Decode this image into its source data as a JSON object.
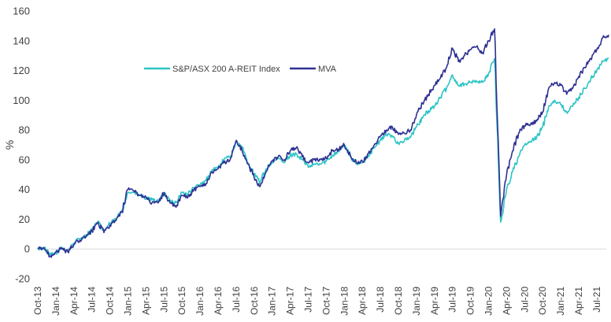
{
  "chart_data": {
    "type": "line",
    "title": "",
    "xlabel": "",
    "ylabel": "%",
    "ylim": [
      -20,
      160
    ],
    "y_ticks": [
      "-20",
      "0",
      "20",
      "40",
      "60",
      "80",
      "100",
      "120",
      "140",
      "160"
    ],
    "x_tick_labels": [
      "Oct-13",
      "Jan-14",
      "Apr-14",
      "Jul-14",
      "Oct-14",
      "Jan-15",
      "Apr-15",
      "Jul-15",
      "Oct-15",
      "Jan-16",
      "Apr-16",
      "Jul-16",
      "Oct-16",
      "Jan-17",
      "Apr-17",
      "Jul-17",
      "Oct-17",
      "Jan-18",
      "Apr-18",
      "Jul-18",
      "Oct-18",
      "Jan-19",
      "Apr-19",
      "Jul-19",
      "Oct-19",
      "Jan-20",
      "Apr-20",
      "Jul-20",
      "Oct-20",
      "Jan-21",
      "Apr-21",
      "Jul-21"
    ],
    "grid": "horizontal-zero-line-only",
    "legend_position": "top-left",
    "series": [
      {
        "name": "S&P/ASX 200 A-REIT Index",
        "color": "#2ec4c6",
        "points": [
          [
            "Oct-13",
            0
          ],
          [
            "Nov-13",
            1
          ],
          [
            "Dec-13",
            -4
          ],
          [
            "Jan-14",
            -3
          ],
          [
            "Feb-14",
            1
          ],
          [
            "Mar-14",
            -1
          ],
          [
            "Apr-14",
            4
          ],
          [
            "May-14",
            7
          ],
          [
            "Jun-14",
            9
          ],
          [
            "Jul-14",
            13
          ],
          [
            "Aug-14",
            18
          ],
          [
            "Sep-14",
            12
          ],
          [
            "Oct-14",
            17
          ],
          [
            "Nov-14",
            20
          ],
          [
            "Dec-14",
            26
          ],
          [
            "Jan-15",
            38
          ],
          [
            "Feb-15",
            38
          ],
          [
            "Mar-15",
            36
          ],
          [
            "Apr-15",
            34
          ],
          [
            "May-15",
            33
          ],
          [
            "Jun-15",
            32
          ],
          [
            "Jul-15",
            37
          ],
          [
            "Aug-15",
            33
          ],
          [
            "Sep-15",
            31
          ],
          [
            "Oct-15",
            38
          ],
          [
            "Nov-15",
            37
          ],
          [
            "Dec-15",
            41
          ],
          [
            "Jan-16",
            43
          ],
          [
            "Feb-16",
            46
          ],
          [
            "Mar-16",
            53
          ],
          [
            "Apr-16",
            55
          ],
          [
            "May-16",
            60
          ],
          [
            "Jun-16",
            62
          ],
          [
            "Jul-16",
            72
          ],
          [
            "Aug-16",
            68
          ],
          [
            "Sep-16",
            58
          ],
          [
            "Oct-16",
            50
          ],
          [
            "Nov-16",
            45
          ],
          [
            "Dec-16",
            54
          ],
          [
            "Jan-17",
            58
          ],
          [
            "Feb-17",
            61
          ],
          [
            "Mar-17",
            58
          ],
          [
            "Apr-17",
            63
          ],
          [
            "May-17",
            64
          ],
          [
            "Jun-17",
            60
          ],
          [
            "Jul-17",
            55
          ],
          [
            "Aug-17",
            57
          ],
          [
            "Sep-17",
            57
          ],
          [
            "Oct-17",
            59
          ],
          [
            "Nov-17",
            63
          ],
          [
            "Dec-17",
            66
          ],
          [
            "Jan-18",
            70
          ],
          [
            "Feb-18",
            62
          ],
          [
            "Mar-18",
            57
          ],
          [
            "Apr-18",
            58
          ],
          [
            "May-18",
            63
          ],
          [
            "Jun-18",
            68
          ],
          [
            "Jul-18",
            73
          ],
          [
            "Aug-18",
            77
          ],
          [
            "Sep-18",
            76
          ],
          [
            "Oct-18",
            71
          ],
          [
            "Nov-18",
            73
          ],
          [
            "Dec-18",
            75
          ],
          [
            "Jan-19",
            82
          ],
          [
            "Feb-19",
            88
          ],
          [
            "Mar-19",
            93
          ],
          [
            "Apr-19",
            96
          ],
          [
            "May-19",
            102
          ],
          [
            "Jun-19",
            108
          ],
          [
            "Jul-19",
            117
          ],
          [
            "Aug-19",
            110
          ],
          [
            "Sep-19",
            111
          ],
          [
            "Oct-19",
            112
          ],
          [
            "Nov-19",
            113
          ],
          [
            "Dec-19",
            112
          ],
          [
            "Jan-20",
            118
          ],
          [
            "Feb-20",
            128
          ],
          [
            "Mar-20",
            18
          ],
          [
            "Apr-20",
            40
          ],
          [
            "May-20",
            52
          ],
          [
            "Jun-20",
            62
          ],
          [
            "Jul-20",
            70
          ],
          [
            "Aug-20",
            72
          ],
          [
            "Sep-20",
            75
          ],
          [
            "Oct-20",
            82
          ],
          [
            "Nov-20",
            96
          ],
          [
            "Dec-20",
            100
          ],
          [
            "Jan-21",
            97
          ],
          [
            "Feb-21",
            92
          ],
          [
            "Mar-21",
            96
          ],
          [
            "Apr-21",
            102
          ],
          [
            "May-21",
            108
          ],
          [
            "Jun-21",
            114
          ],
          [
            "Jul-21",
            120
          ],
          [
            "Aug-21",
            126
          ],
          [
            "Sep-21",
            128
          ]
        ]
      },
      {
        "name": "MVA",
        "color": "#2e3192",
        "points": [
          [
            "Oct-13",
            0
          ],
          [
            "Nov-13",
            1
          ],
          [
            "Dec-13",
            -5
          ],
          [
            "Jan-14",
            -2
          ],
          [
            "Feb-14",
            0
          ],
          [
            "Mar-14",
            -2
          ],
          [
            "Apr-14",
            3
          ],
          [
            "May-14",
            6
          ],
          [
            "Jun-14",
            8
          ],
          [
            "Jul-14",
            12
          ],
          [
            "Aug-14",
            18
          ],
          [
            "Sep-14",
            11
          ],
          [
            "Oct-14",
            16
          ],
          [
            "Nov-14",
            19
          ],
          [
            "Dec-14",
            25
          ],
          [
            "Jan-15",
            40
          ],
          [
            "Feb-15",
            39
          ],
          [
            "Mar-15",
            36
          ],
          [
            "Apr-15",
            35
          ],
          [
            "May-15",
            31
          ],
          [
            "Jun-15",
            31
          ],
          [
            "Jul-15",
            38
          ],
          [
            "Aug-15",
            31
          ],
          [
            "Sep-15",
            28
          ],
          [
            "Oct-15",
            36
          ],
          [
            "Nov-15",
            35
          ],
          [
            "Dec-15",
            40
          ],
          [
            "Jan-16",
            42
          ],
          [
            "Feb-16",
            44
          ],
          [
            "Mar-16",
            52
          ],
          [
            "Apr-16",
            54
          ],
          [
            "May-16",
            58
          ],
          [
            "Jun-16",
            60
          ],
          [
            "Jul-16",
            73
          ],
          [
            "Aug-16",
            66
          ],
          [
            "Sep-16",
            57
          ],
          [
            "Oct-16",
            48
          ],
          [
            "Nov-16",
            42
          ],
          [
            "Dec-16",
            52
          ],
          [
            "Jan-17",
            59
          ],
          [
            "Feb-17",
            62
          ],
          [
            "Mar-17",
            60
          ],
          [
            "Apr-17",
            66
          ],
          [
            "May-17",
            68
          ],
          [
            "Jun-17",
            62
          ],
          [
            "Jul-17",
            58
          ],
          [
            "Aug-17",
            60
          ],
          [
            "Sep-17",
            60
          ],
          [
            "Oct-17",
            61
          ],
          [
            "Nov-17",
            66
          ],
          [
            "Dec-17",
            67
          ],
          [
            "Jan-18",
            70
          ],
          [
            "Feb-18",
            63
          ],
          [
            "Mar-18",
            58
          ],
          [
            "Apr-18",
            59
          ],
          [
            "May-18",
            64
          ],
          [
            "Jun-18",
            70
          ],
          [
            "Jul-18",
            76
          ],
          [
            "Aug-18",
            80
          ],
          [
            "Sep-18",
            82
          ],
          [
            "Oct-18",
            77
          ],
          [
            "Nov-18",
            78
          ],
          [
            "Dec-18",
            80
          ],
          [
            "Jan-19",
            90
          ],
          [
            "Feb-19",
            98
          ],
          [
            "Mar-19",
            104
          ],
          [
            "Apr-19",
            110
          ],
          [
            "May-19",
            115
          ],
          [
            "Jun-19",
            122
          ],
          [
            "Jul-19",
            135
          ],
          [
            "Aug-19",
            126
          ],
          [
            "Sep-19",
            130
          ],
          [
            "Oct-19",
            134
          ],
          [
            "Nov-19",
            136
          ],
          [
            "Dec-19",
            132
          ],
          [
            "Jan-20",
            140
          ],
          [
            "Feb-20",
            148
          ],
          [
            "Mar-20",
            22
          ],
          [
            "Apr-20",
            50
          ],
          [
            "May-20",
            66
          ],
          [
            "Jun-20",
            78
          ],
          [
            "Jul-20",
            83
          ],
          [
            "Aug-20",
            84
          ],
          [
            "Sep-20",
            86
          ],
          [
            "Oct-20",
            92
          ],
          [
            "Nov-20",
            108
          ],
          [
            "Dec-20",
            112
          ],
          [
            "Jan-21",
            110
          ],
          [
            "Feb-21",
            104
          ],
          [
            "Mar-21",
            108
          ],
          [
            "Apr-21",
            116
          ],
          [
            "May-21",
            122
          ],
          [
            "Jun-21",
            128
          ],
          [
            "Jul-21",
            134
          ],
          [
            "Aug-21",
            142
          ],
          [
            "Sep-21",
            144
          ]
        ]
      }
    ]
  }
}
